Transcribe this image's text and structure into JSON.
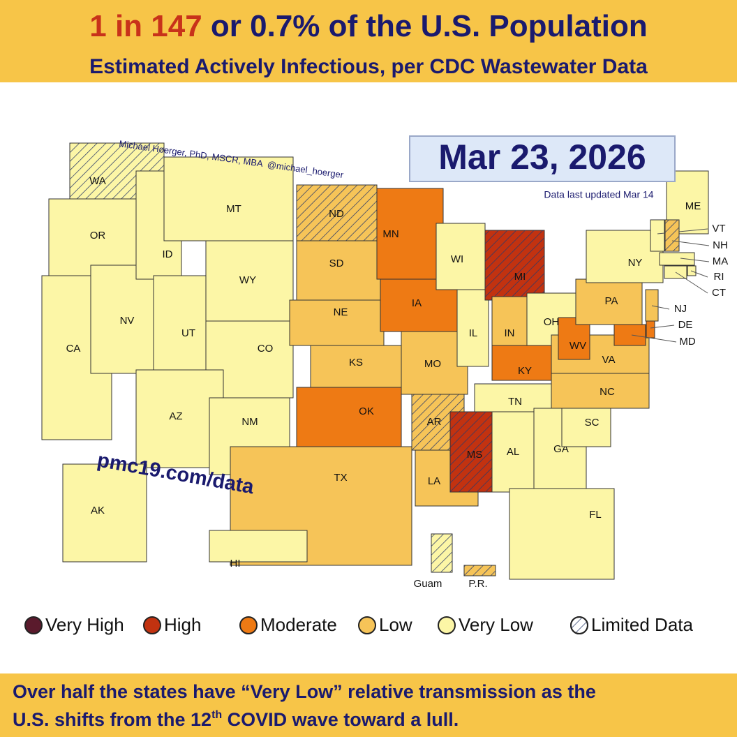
{
  "header": {
    "title_parts": [
      "1 in 147",
      " or 0.7% of the U.S. Population"
    ],
    "subtitle": "Estimated Actively Infectious, per CDC Wastewater Data"
  },
  "map": {
    "credit": "Michael Hoerger, PhD, MSCR, MBA  @michael_hoerger",
    "date": "Mar 23, 2026",
    "updated": "Data last updated Mar 14",
    "url": "pmc19.com/data",
    "states": [
      {
        "label": "WA",
        "level": "Very Low",
        "limited": true
      },
      {
        "label": "OR",
        "level": "Very Low",
        "limited": false
      },
      {
        "label": "CA",
        "level": "Very Low",
        "limited": false
      },
      {
        "label": "NV",
        "level": "Very Low",
        "limited": false
      },
      {
        "label": "ID",
        "level": "Very Low",
        "limited": false
      },
      {
        "label": "MT",
        "level": "Very Low",
        "limited": false
      },
      {
        "label": "WY",
        "level": "Very Low",
        "limited": false
      },
      {
        "label": "UT",
        "level": "Very Low",
        "limited": false
      },
      {
        "label": "CO",
        "level": "Very Low",
        "limited": false
      },
      {
        "label": "AZ",
        "level": "Very Low",
        "limited": false
      },
      {
        "label": "NM",
        "level": "Very Low",
        "limited": false
      },
      {
        "label": "ND",
        "level": "Low",
        "limited": true
      },
      {
        "label": "SD",
        "level": "Low",
        "limited": false
      },
      {
        "label": "NE",
        "level": "Low",
        "limited": false
      },
      {
        "label": "KS",
        "level": "Low",
        "limited": false
      },
      {
        "label": "OK",
        "level": "Moderate",
        "limited": false
      },
      {
        "label": "TX",
        "level": "Low",
        "limited": false
      },
      {
        "label": "MN",
        "level": "Moderate",
        "limited": false
      },
      {
        "label": "IA",
        "level": "Moderate",
        "limited": false
      },
      {
        "label": "MO",
        "level": "Low",
        "limited": false
      },
      {
        "label": "AR",
        "level": "Low",
        "limited": true
      },
      {
        "label": "LA",
        "level": "Low",
        "limited": false
      },
      {
        "label": "WI",
        "level": "Very Low",
        "limited": false
      },
      {
        "label": "IL",
        "level": "Very Low",
        "limited": false
      },
      {
        "label": "MI",
        "level": "High",
        "limited": true
      },
      {
        "label": "IN",
        "level": "Low",
        "limited": false
      },
      {
        "label": "OH",
        "level": "Very Low",
        "limited": false
      },
      {
        "label": "KY",
        "level": "Moderate",
        "limited": false
      },
      {
        "label": "TN",
        "level": "Very Low",
        "limited": false
      },
      {
        "label": "MS",
        "level": "High",
        "limited": true
      },
      {
        "label": "AL",
        "level": "Very Low",
        "limited": false
      },
      {
        "label": "GA",
        "level": "Very Low",
        "limited": false
      },
      {
        "label": "FL",
        "level": "Very Low",
        "limited": false
      },
      {
        "label": "SC",
        "level": "Very Low",
        "limited": false
      },
      {
        "label": "NC",
        "level": "Low",
        "limited": false
      },
      {
        "label": "VA",
        "level": "Low",
        "limited": false
      },
      {
        "label": "WV",
        "level": "Moderate",
        "limited": false
      },
      {
        "label": "PA",
        "level": "Low",
        "limited": false
      },
      {
        "label": "NY",
        "level": "Very Low",
        "limited": false
      },
      {
        "label": "ME",
        "level": "Very Low",
        "limited": false
      },
      {
        "label": "VT",
        "level": "Very Low",
        "limited": false
      },
      {
        "label": "NH",
        "level": "Low",
        "limited": true
      },
      {
        "label": "MA",
        "level": "Very Low",
        "limited": false
      },
      {
        "label": "RI",
        "level": "Very Low",
        "limited": false
      },
      {
        "label": "CT",
        "level": "Very Low",
        "limited": false
      },
      {
        "label": "NJ",
        "level": "Low",
        "limited": false
      },
      {
        "label": "DE",
        "level": "Moderate",
        "limited": false
      },
      {
        "label": "MD",
        "level": "Moderate",
        "limited": false
      },
      {
        "label": "AK",
        "level": "Very Low",
        "limited": false
      },
      {
        "label": "HI",
        "level": "Very Low",
        "limited": false
      },
      {
        "label": "Guam",
        "level": "Very Low",
        "limited": true
      },
      {
        "label": "P.R.",
        "level": "Low",
        "limited": true
      }
    ]
  },
  "legend": [
    {
      "label": "Very High",
      "color": "#5a1a2c"
    },
    {
      "label": "High",
      "color": "#c23210"
    },
    {
      "label": "Moderate",
      "color": "#ee7a14"
    },
    {
      "label": "Low",
      "color": "#f6c458"
    },
    {
      "label": "Very Low",
      "color": "#fcf6a6"
    },
    {
      "label": "Limited Data",
      "color": "#ffffff"
    }
  ],
  "footer": {
    "line1": "Over half the states have “Very Low” relative transmission as the",
    "line2_parts": [
      "U.S. shifts from the 12",
      "th",
      " COVID wave toward a lull."
    ]
  }
}
